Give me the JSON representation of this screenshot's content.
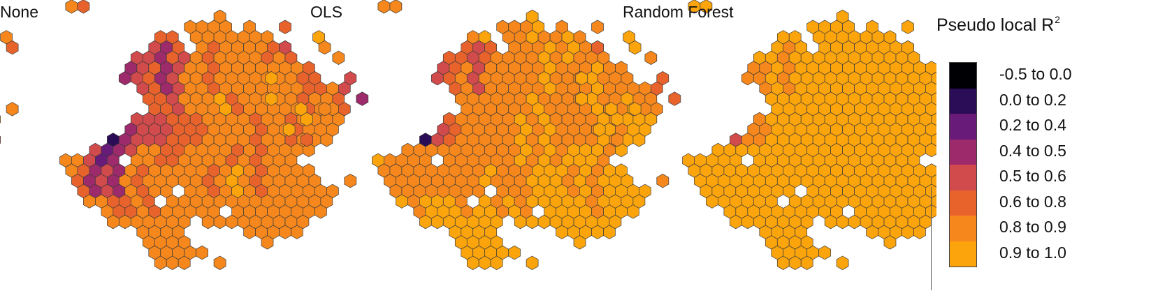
{
  "panels": [
    {
      "title": "None",
      "bins": [
        [
          4,
          5,
          5,
          5,
          5,
          6,
          6,
          6,
          6,
          6,
          5,
          5,
          6,
          6,
          6,
          6,
          6,
          6,
          6,
          6,
          6,
          5,
          6,
          6,
          6,
          7,
          5,
          6,
          6,
          6,
          6,
          6
        ],
        [
          5,
          5,
          6,
          4,
          4,
          3,
          4,
          3,
          4,
          4,
          3,
          5,
          4,
          6,
          5,
          6,
          6,
          6,
          6,
          5,
          6,
          5,
          6,
          4,
          6,
          6,
          5,
          5,
          6,
          6,
          5,
          6
        ],
        [
          6,
          6,
          5,
          6,
          4,
          3,
          4,
          3,
          4,
          5,
          3,
          4,
          6,
          6,
          5,
          6,
          6,
          6,
          6,
          6,
          6,
          6,
          5,
          5,
          6,
          6,
          6,
          5,
          6,
          6,
          6,
          6
        ],
        [
          6,
          6,
          6,
          6,
          4,
          4,
          3,
          3,
          4,
          5,
          5,
          4,
          6,
          6,
          6,
          7,
          5,
          6,
          6,
          6,
          6,
          6,
          5,
          6,
          6,
          5,
          6,
          5,
          6,
          5,
          6,
          6
        ],
        [
          6,
          6,
          7,
          6,
          4,
          3,
          1,
          3,
          4,
          4,
          4,
          5,
          5,
          5,
          6,
          6,
          6,
          6,
          5,
          6,
          6,
          5,
          6,
          6,
          6,
          6,
          5,
          5,
          6,
          6,
          6,
          6
        ],
        [
          5,
          6,
          6,
          6,
          4,
          2,
          3,
          4,
          6,
          6,
          5,
          5,
          6,
          6,
          6,
          6,
          5,
          6,
          5,
          6,
          6,
          6,
          6,
          6,
          5,
          6,
          6,
          5,
          6,
          6,
          6,
          6
        ],
        [
          6,
          6,
          6,
          5,
          3,
          4,
          3,
          6,
          5,
          6,
          6,
          6,
          6,
          6,
          5,
          6,
          7,
          6,
          5,
          6,
          6,
          6,
          6,
          6,
          6,
          6,
          6,
          6,
          6,
          6,
          6,
          5
        ],
        [
          6,
          6,
          7,
          6,
          6,
          6,
          5,
          5,
          6,
          5,
          6,
          6,
          6,
          6,
          6,
          6,
          6,
          6,
          6,
          6,
          6,
          6,
          6,
          6,
          6,
          5,
          6,
          6,
          6,
          6,
          6,
          6
        ],
        [
          6,
          5,
          5,
          6,
          6,
          6,
          6,
          6,
          6,
          6,
          6,
          6,
          6,
          5,
          6,
          6,
          6,
          6,
          6,
          6,
          6,
          6,
          6,
          6,
          6,
          6,
          6,
          6,
          6,
          6,
          6,
          6
        ],
        [
          6,
          6,
          6,
          5,
          6,
          6,
          6,
          6,
          6,
          6,
          6,
          6,
          6,
          6,
          6,
          6,
          6,
          6,
          6,
          6,
          6,
          6,
          6,
          6,
          6,
          6,
          6,
          6,
          6,
          6,
          6,
          6
        ]
      ]
    },
    {
      "title": "OLS",
      "bins": [
        [
          6,
          6,
          6,
          6,
          6,
          7,
          7,
          6,
          6,
          6,
          6,
          7,
          6,
          6,
          6,
          7,
          6,
          6,
          7,
          6,
          7,
          6,
          6,
          6,
          7,
          7,
          6,
          7,
          6,
          7,
          6,
          6
        ],
        [
          6,
          6,
          6,
          6,
          5,
          5,
          5,
          4,
          5,
          5,
          4,
          5,
          6,
          6,
          6,
          6,
          7,
          6,
          7,
          6,
          6,
          6,
          6,
          5,
          6,
          6,
          7,
          6,
          6,
          7,
          6,
          6
        ],
        [
          6,
          6,
          6,
          5,
          5,
          4,
          3,
          4,
          5,
          6,
          4,
          6,
          6,
          6,
          6,
          6,
          7,
          6,
          6,
          6,
          7,
          6,
          6,
          6,
          6,
          6,
          6,
          7,
          7,
          7,
          6,
          6
        ],
        [
          6,
          6,
          6,
          5,
          5,
          3,
          3,
          5,
          5,
          6,
          6,
          6,
          6,
          6,
          6,
          7,
          6,
          6,
          6,
          6,
          7,
          6,
          6,
          7,
          6,
          6,
          6,
          6,
          7,
          6,
          7,
          7
        ],
        [
          7,
          7,
          7,
          6,
          5,
          4,
          1,
          4,
          5,
          6,
          6,
          6,
          6,
          6,
          7,
          6,
          7,
          6,
          6,
          6,
          6,
          7,
          6,
          7,
          7,
          7,
          6,
          6,
          6,
          6,
          6,
          7
        ],
        [
          6,
          7,
          7,
          6,
          6,
          6,
          6,
          6,
          6,
          6,
          6,
          6,
          6,
          6,
          7,
          6,
          7,
          6,
          7,
          7,
          7,
          6,
          7,
          6,
          7,
          7,
          6,
          6,
          7,
          7,
          6,
          7
        ],
        [
          7,
          7,
          6,
          6,
          6,
          6,
          6,
          6,
          6,
          6,
          6,
          7,
          6,
          6,
          6,
          7,
          7,
          7,
          6,
          7,
          6,
          7,
          7,
          7,
          7,
          7,
          7,
          6,
          7,
          6,
          7,
          7
        ],
        [
          7,
          7,
          7,
          6,
          7,
          6,
          7,
          7,
          7,
          6,
          7,
          7,
          6,
          7,
          6,
          7,
          7,
          7,
          7,
          7,
          6,
          7,
          7,
          7,
          7,
          7,
          7,
          7,
          6,
          7,
          7,
          7
        ],
        [
          7,
          7,
          7,
          7,
          7,
          7,
          7,
          7,
          7,
          7,
          7,
          7,
          7,
          7,
          7,
          7,
          7,
          7,
          7,
          7,
          7,
          7,
          7,
          7,
          7,
          7,
          7,
          7,
          7,
          7,
          7,
          7
        ],
        [
          7,
          7,
          7,
          7,
          7,
          7,
          7,
          7,
          7,
          7,
          7,
          7,
          7,
          7,
          7,
          7,
          7,
          7,
          7,
          7,
          7,
          7,
          7,
          7,
          7,
          7,
          7,
          7,
          7,
          7,
          7,
          7
        ]
      ]
    },
    {
      "title": "Random Forest",
      "bins": [
        [
          7,
          7,
          7,
          7,
          7,
          7,
          7,
          7,
          7,
          7,
          7,
          7,
          7,
          7,
          7,
          7,
          7,
          7,
          7,
          7,
          7,
          7,
          7,
          7,
          7,
          7,
          7,
          7,
          7,
          7,
          7,
          7
        ],
        [
          7,
          7,
          7,
          6,
          7,
          6,
          6,
          6,
          7,
          7,
          6,
          7,
          7,
          7,
          7,
          7,
          7,
          7,
          7,
          7,
          7,
          7,
          7,
          7,
          7,
          7,
          7,
          7,
          7,
          7,
          7,
          7
        ],
        [
          7,
          7,
          7,
          6,
          6,
          6,
          6,
          6,
          6,
          7,
          6,
          7,
          7,
          7,
          7,
          7,
          7,
          7,
          7,
          7,
          7,
          7,
          7,
          7,
          7,
          7,
          7,
          7,
          7,
          7,
          7,
          7
        ],
        [
          7,
          7,
          7,
          7,
          6,
          6,
          5,
          6,
          6,
          7,
          7,
          7,
          7,
          7,
          7,
          7,
          7,
          7,
          7,
          7,
          7,
          7,
          7,
          7,
          7,
          7,
          7,
          7,
          7,
          7,
          7,
          7
        ],
        [
          7,
          7,
          7,
          7,
          6,
          6,
          4,
          6,
          6,
          7,
          7,
          7,
          7,
          7,
          7,
          7,
          7,
          7,
          7,
          7,
          7,
          7,
          7,
          7,
          7,
          7,
          7,
          7,
          7,
          7,
          7,
          7
        ],
        [
          7,
          7,
          7,
          7,
          7,
          7,
          7,
          7,
          7,
          7,
          7,
          7,
          7,
          7,
          7,
          7,
          7,
          7,
          7,
          7,
          7,
          7,
          7,
          7,
          7,
          7,
          7,
          7,
          7,
          7,
          7,
          7
        ],
        [
          7,
          7,
          7,
          7,
          7,
          7,
          7,
          7,
          7,
          7,
          7,
          7,
          7,
          7,
          7,
          7,
          7,
          7,
          7,
          7,
          7,
          7,
          7,
          7,
          7,
          7,
          7,
          7,
          7,
          7,
          7,
          7
        ],
        [
          7,
          7,
          7,
          7,
          7,
          7,
          7,
          7,
          7,
          7,
          7,
          7,
          7,
          7,
          7,
          7,
          7,
          7,
          7,
          7,
          7,
          7,
          7,
          7,
          7,
          7,
          7,
          7,
          7,
          7,
          7,
          7
        ],
        [
          7,
          7,
          7,
          7,
          7,
          7,
          7,
          7,
          7,
          7,
          7,
          7,
          7,
          7,
          7,
          7,
          7,
          7,
          7,
          7,
          7,
          7,
          7,
          7,
          7,
          7,
          7,
          7,
          7,
          7,
          7,
          7
        ],
        [
          7,
          7,
          7,
          7,
          7,
          7,
          7,
          7,
          7,
          7,
          7,
          7,
          7,
          7,
          7,
          7,
          7,
          7,
          7,
          7,
          7,
          7,
          7,
          7,
          7,
          7,
          7,
          7,
          7,
          7,
          7,
          7
        ]
      ]
    }
  ],
  "legend": {
    "title": "Pseudo local R",
    "title_superscript": "2",
    "classes": [
      {
        "label": "-0.5 to 0.0",
        "color": "#000004"
      },
      {
        "label": "0.0 to 0.2",
        "color": "#2b0c57"
      },
      {
        "label": "0.2 to 0.4",
        "color": "#681b79"
      },
      {
        "label": "0.4 to 0.5",
        "color": "#9d2a6b"
      },
      {
        "label": "0.5 to 0.6",
        "color": "#d14a4c"
      },
      {
        "label": "0.6 to 0.8",
        "color": "#e8632c"
      },
      {
        "label": "0.8 to 0.9",
        "color": "#f5871c"
      },
      {
        "label": "0.9 to 1.0",
        "color": "#fba40c"
      }
    ]
  }
}
